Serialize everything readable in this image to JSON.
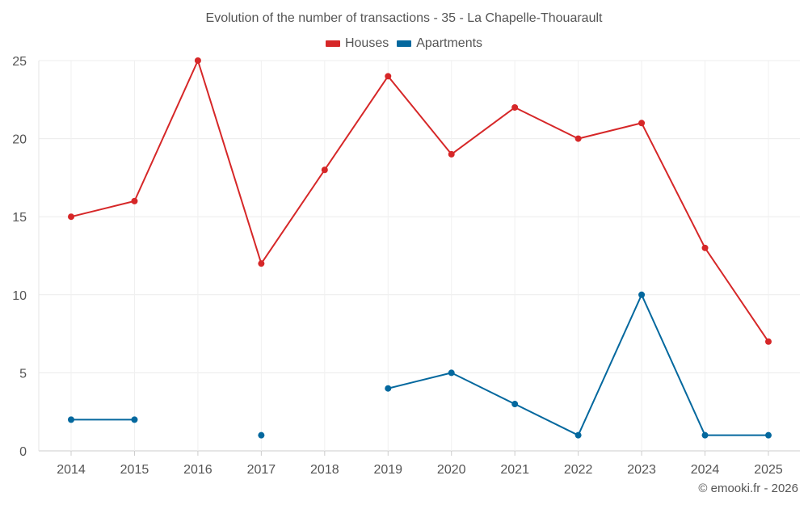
{
  "chart_data": {
    "type": "line",
    "title": "Evolution of the number of transactions - 35 - La Chapelle-Thouarault",
    "xlabel": "",
    "ylabel": "",
    "categories": [
      "2014",
      "2015",
      "2016",
      "2017",
      "2018",
      "2019",
      "2020",
      "2021",
      "2022",
      "2023",
      "2024",
      "2025"
    ],
    "ylim": [
      0,
      25
    ],
    "yticks": [
      0,
      5,
      10,
      15,
      20,
      25
    ],
    "grid": true,
    "legend_position": "top-center",
    "series": [
      {
        "name": "Houses",
        "color": "#d62728",
        "values": [
          15,
          16,
          25,
          12,
          18,
          24,
          19,
          22,
          20,
          21,
          13,
          7
        ]
      },
      {
        "name": "Apartments",
        "color": "#04689e",
        "values": [
          2,
          2,
          null,
          1,
          null,
          4,
          5,
          3,
          1,
          10,
          1,
          1
        ]
      }
    ]
  },
  "credit": "© emooki.fr - 2026"
}
